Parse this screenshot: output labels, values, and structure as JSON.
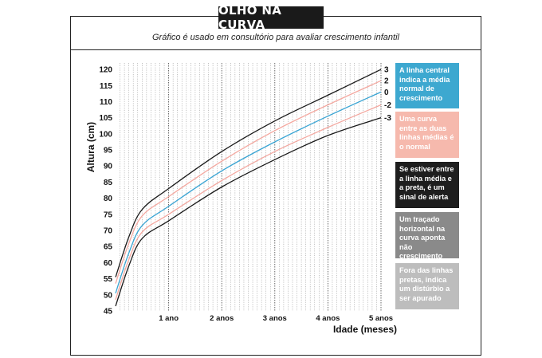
{
  "header": {
    "title": "OLHO NA CURVA",
    "subtitle": "Gráfico é usado em consultório para avaliar crescimento infantil"
  },
  "legend": [
    {
      "text": "A linha central indica a média normal de crescimento",
      "color": "#3da8d0"
    },
    {
      "text": "Uma curva entre as duas linhas médias é o normal",
      "color": "#f6b9ad"
    },
    {
      "text": "Se estiver entre a linha média e a preta, é um sinal de alerta",
      "color": "#1e1e1e"
    },
    {
      "text": "Um traçado horizontal na curva aponta não crescimento",
      "color": "#8a8a8a"
    },
    {
      "text": "Fora das linhas pretas, indica um distúrbio a ser apurado",
      "color": "#bdbdbd"
    }
  ],
  "chart_data": {
    "type": "line",
    "title": "",
    "xlabel": "Idade (meses)",
    "ylabel": "Altura (cm)",
    "xlim": [
      0,
      60
    ],
    "ylim": [
      45,
      122
    ],
    "x_ticks": [
      {
        "value": 12,
        "label": "1 ano"
      },
      {
        "value": 24,
        "label": "2 anos"
      },
      {
        "value": 36,
        "label": "3 anos"
      },
      {
        "value": 48,
        "label": "4 anos"
      },
      {
        "value": 60,
        "label": "5 anos"
      }
    ],
    "y_ticks": [
      45,
      50,
      55,
      60,
      65,
      70,
      75,
      80,
      85,
      90,
      95,
      100,
      105,
      110,
      115,
      120
    ],
    "grid": true,
    "series": [
      {
        "name": "3",
        "color": "#1a1a1a",
        "x": [
          0,
          3,
          6,
          12,
          24,
          36,
          48,
          60
        ],
        "y": [
          55.5,
          68,
          76.5,
          83,
          94.5,
          104,
          112,
          120
        ]
      },
      {
        "name": "2",
        "color": "#f4a8a0",
        "x": [
          0,
          3,
          6,
          12,
          24,
          36,
          48,
          60
        ],
        "y": [
          53.5,
          66,
          74.5,
          80.5,
          91.5,
          101,
          109,
          116.5
        ]
      },
      {
        "name": "0",
        "color": "#3aa5d4",
        "x": [
          0,
          3,
          6,
          12,
          24,
          36,
          48,
          60
        ],
        "y": [
          50.5,
          63,
          71.5,
          77.5,
          88.5,
          97.5,
          105.5,
          113
        ]
      },
      {
        "name": "-2",
        "color": "#f4a8a0",
        "x": [
          0,
          3,
          6,
          12,
          24,
          36,
          48,
          60
        ],
        "y": [
          48.5,
          61,
          69.5,
          75,
          85.5,
          94.5,
          102,
          109
        ]
      },
      {
        "name": "-3",
        "color": "#1a1a1a",
        "x": [
          0,
          3,
          6,
          12,
          24,
          36,
          48,
          60
        ],
        "y": [
          46.5,
          59,
          67.5,
          73,
          83.5,
          92,
          99.5,
          105
        ]
      }
    ]
  }
}
